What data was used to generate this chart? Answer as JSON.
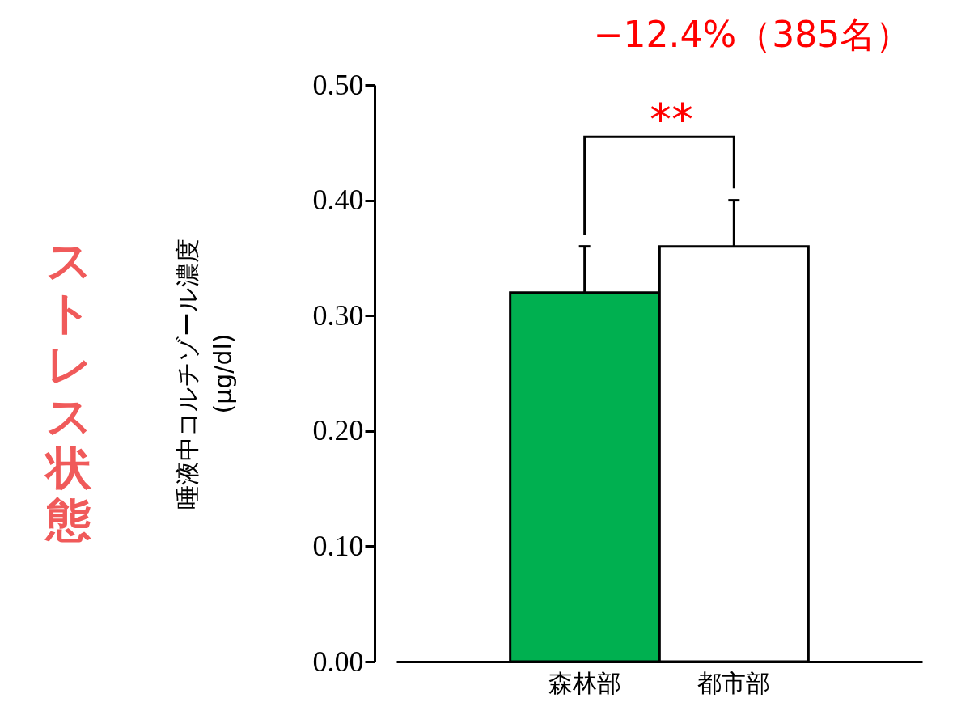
{
  "chart_data": {
    "type": "bar",
    "ylabel": "唾液中コルチゾール濃度\n(μg/dl)",
    "categories": [
      "森林部",
      "都市部"
    ],
    "values": [
      0.32,
      0.36
    ],
    "colors": [
      "#00b050",
      "#ffffff"
    ],
    "errors": [
      [
        0.32,
        0.36
      ],
      [
        0.36,
        0.4
      ]
    ],
    "ylim": [
      0,
      0.5
    ],
    "yticks": [
      {
        "value": 0,
        "label": "0.00"
      },
      {
        "value": 0.1,
        "label": "0.10"
      },
      {
        "value": 0.2,
        "label": "0.20"
      },
      {
        "value": 0.3,
        "label": "0.30"
      },
      {
        "value": 0.4,
        "label": "0.40"
      },
      {
        "value": 0.5,
        "label": "0.50"
      }
    ],
    "annotations": [
      "−12.4%（385名）",
      "**",
      "ストレス状態"
    ],
    "grid": false,
    "legend": false
  }
}
